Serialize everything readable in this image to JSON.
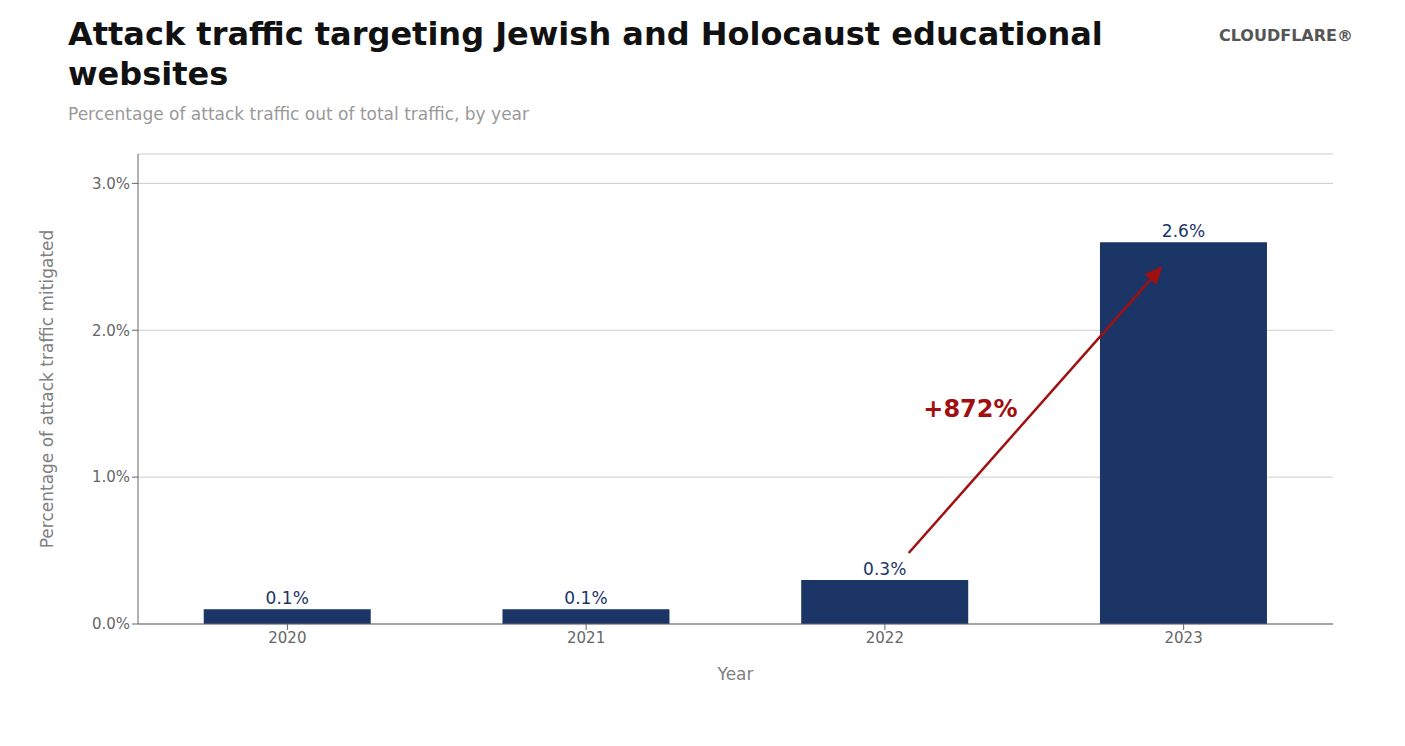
{
  "chart_data": {
    "type": "bar",
    "title": "Attack traffic targeting Jewish and Holocaust educational websites",
    "subtitle": "Percentage of attack traffic out of total traffic, by year",
    "categories": [
      "2020",
      "2021",
      "2022",
      "2023"
    ],
    "values": [
      0.001,
      0.001,
      0.003,
      0.026
    ],
    "value_labels": [
      "0.1%",
      "0.1%",
      "0.3%",
      "2.6%"
    ],
    "data_labels": true,
    "color": "#1a3566",
    "xlabel": "Year",
    "ylabel": "Percentage of attack traffic mitigated",
    "ylim": [
      0,
      0.032
    ],
    "yticks": [
      {
        "value": 0.0,
        "label": "0.0%"
      },
      {
        "value": 0.01,
        "label": "1.0%"
      },
      {
        "value": 0.02,
        "label": "2.0%"
      },
      {
        "value": 0.03,
        "label": "3.0%"
      }
    ],
    "grid": true,
    "annotations": [
      {
        "text": "+872%",
        "color": "#a01010",
        "from": "2022",
        "to": "2023"
      },
      {
        "text": "CLOUDFLARE®"
      }
    ]
  }
}
